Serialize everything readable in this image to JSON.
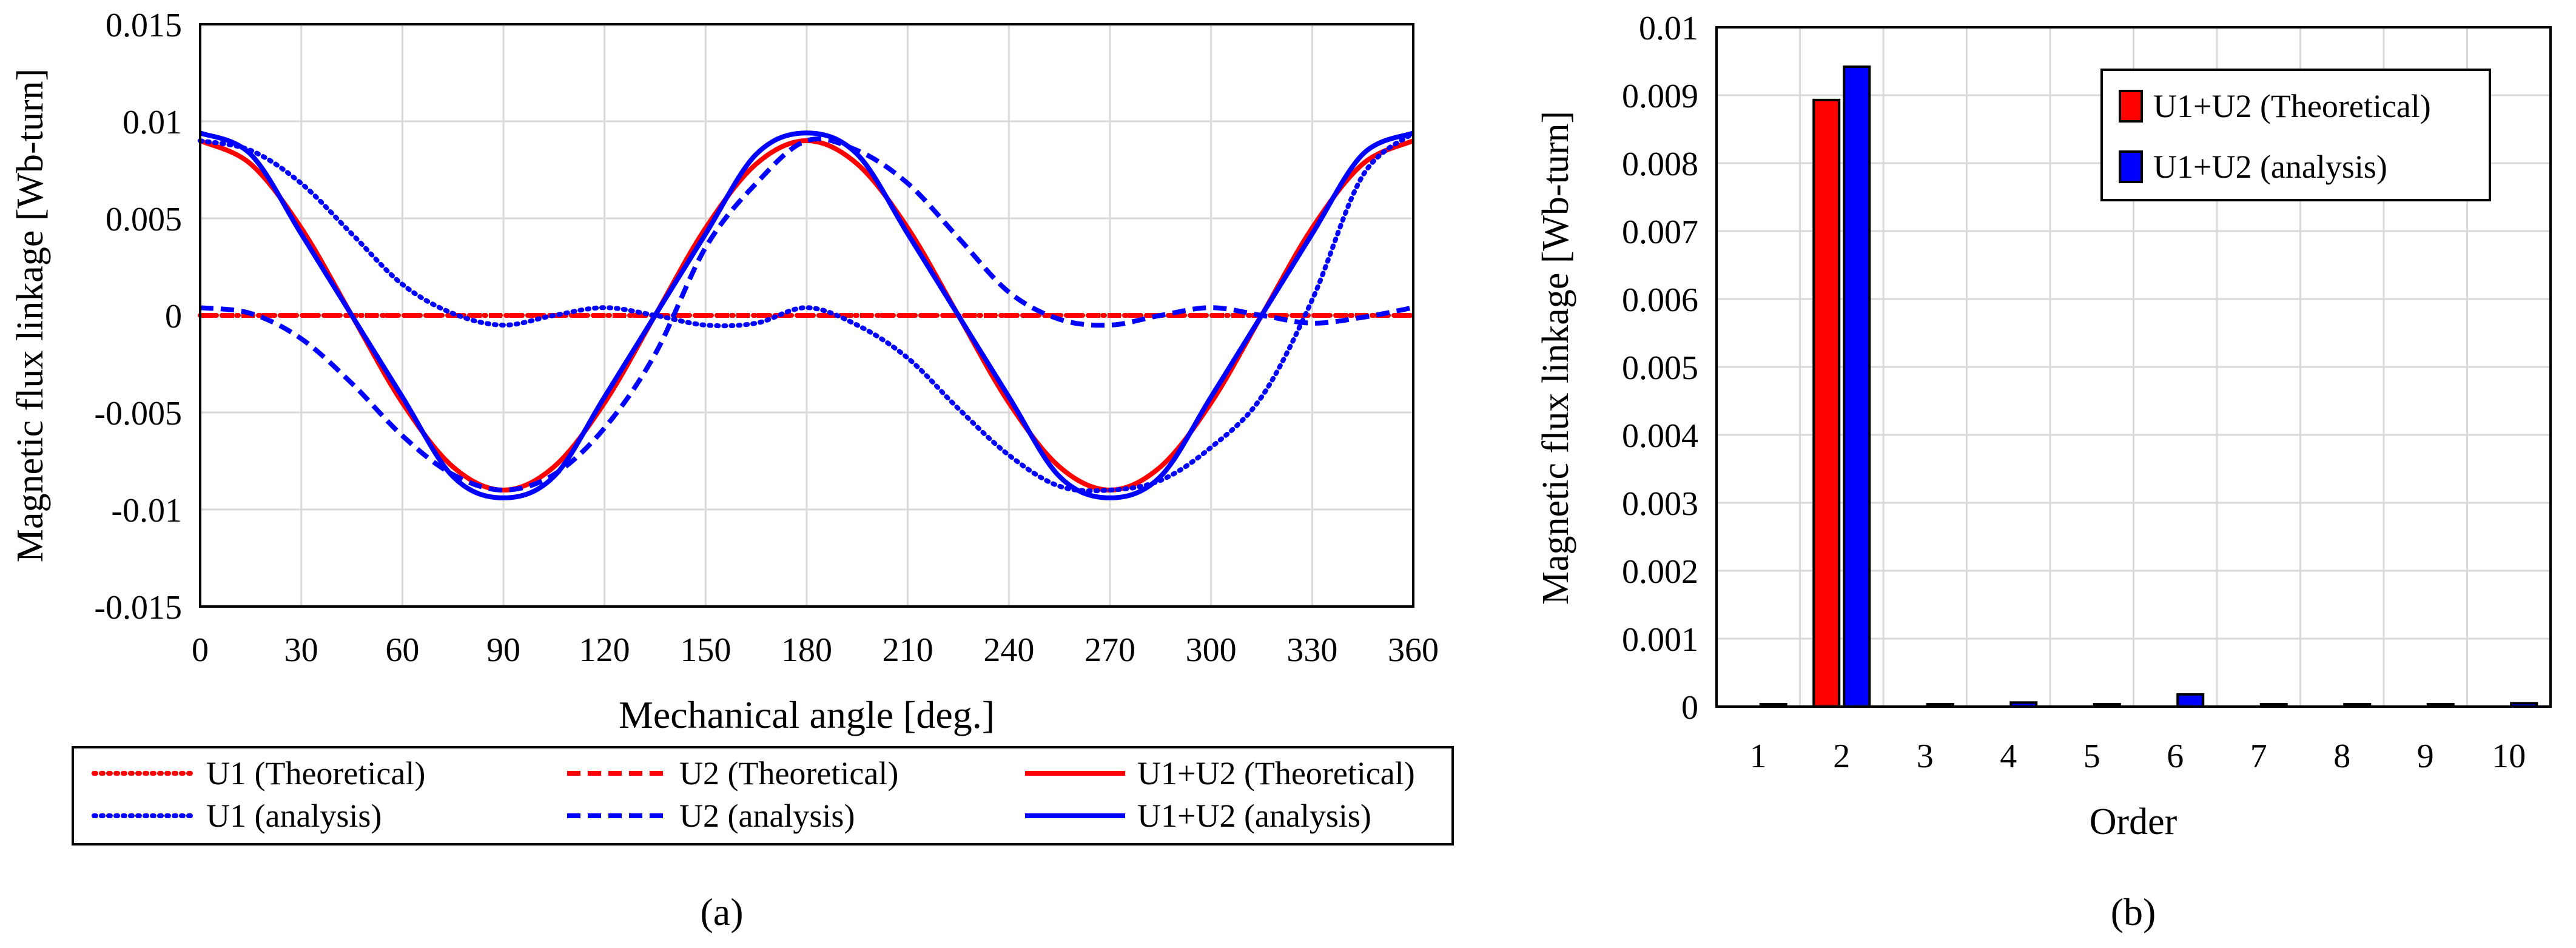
{
  "figure": {
    "panel_a_label": "(a)",
    "panel_b_label": "(b)"
  },
  "colors": {
    "theoretical": "#ff0000",
    "analysis": "#0000ff",
    "grid": "#d9d9d9",
    "axis": "#000000"
  },
  "chart_data": [
    {
      "type": "line",
      "title": "",
      "xlabel": "Mechanical angle [deg.]",
      "ylabel": "Magnetic flux linkage [Wb-turn]",
      "xlim": [
        0,
        360
      ],
      "ylim": [
        -0.015,
        0.015
      ],
      "grid": true,
      "x_ticks": [
        0,
        30,
        60,
        90,
        120,
        150,
        180,
        210,
        240,
        270,
        300,
        330,
        360
      ],
      "x_tick_labels": [
        "0",
        "30",
        "60",
        "90",
        "120",
        "150",
        "180",
        "210",
        "240",
        "270",
        "300",
        "330",
        "360"
      ],
      "y_ticks": [
        0.015,
        0.01,
        0.005,
        0,
        -0.005,
        -0.01,
        -0.015
      ],
      "y_tick_labels": [
        "0.015",
        "0.01",
        "0.005",
        "0",
        "-0.005",
        "-0.01",
        "-0.015"
      ],
      "legend_position": "bottom",
      "x": [
        0,
        15,
        30,
        45,
        60,
        75,
        90,
        105,
        120,
        135,
        150,
        165,
        180,
        195,
        210,
        225,
        240,
        255,
        270,
        285,
        300,
        315,
        330,
        345,
        360
      ],
      "series": [
        {
          "name": "U1 (Theoretical)",
          "style": "dotted",
          "color": "#ff0000",
          "values": [
            0,
            0,
            0,
            0,
            0,
            0,
            0,
            0,
            0,
            0,
            0,
            0,
            0,
            0,
            0,
            0,
            0,
            0,
            0,
            0,
            0,
            0,
            0,
            0,
            0
          ]
        },
        {
          "name": "U2 (Theoretical)",
          "style": "dashed",
          "color": "#ff0000",
          "values": [
            0,
            0,
            0,
            0,
            0,
            0,
            0,
            0,
            0,
            0,
            0,
            0,
            0,
            0,
            0,
            0,
            0,
            0,
            0,
            0,
            0,
            0,
            0,
            0,
            0
          ]
        },
        {
          "name": "U1+U2 (Theoretical)",
          "style": "solid",
          "color": "#ff0000",
          "values": [
            0.009,
            0.0078,
            0.0045,
            0,
            -0.0045,
            -0.0078,
            -0.009,
            -0.0078,
            -0.0045,
            0,
            0.0045,
            0.0078,
            0.009,
            0.0078,
            0.0045,
            0,
            -0.0045,
            -0.0078,
            -0.009,
            -0.0078,
            -0.0045,
            0,
            0.0045,
            0.0078,
            0.009
          ]
        },
        {
          "name": "U1 (analysis)",
          "style": "dotted",
          "color": "#0000ff",
          "values": [
            0.009,
            0.0085,
            0.0068,
            0.0042,
            0.0016,
            0.0001,
            -0.0005,
            0.0,
            0.0004,
            0.0,
            -0.0005,
            -0.0004,
            0.0004,
            -0.0005,
            -0.0022,
            -0.0048,
            -0.0072,
            -0.0088,
            -0.009,
            -0.0085,
            -0.0068,
            -0.0042,
            0.0008,
            0.0072,
            0.0094
          ]
        },
        {
          "name": "U2 (analysis)",
          "style": "dashed",
          "color": "#0000ff",
          "values": [
            0.0004,
            0.0001,
            -0.0012,
            -0.0035,
            -0.0062,
            -0.0082,
            -0.009,
            -0.0082,
            -0.0058,
            -0.002,
            0.0035,
            0.0068,
            0.009,
            0.0085,
            0.0068,
            0.004,
            0.0012,
            -0.0002,
            -0.0005,
            0.0,
            0.0004,
            0.0,
            -0.0004,
            -0.0001,
            0.0004
          ]
        },
        {
          "name": "U1+U2 (analysis)",
          "style": "solid",
          "color": "#0000ff",
          "values": [
            0.0094,
            0.0083,
            0.0042,
            0,
            -0.0042,
            -0.0083,
            -0.0094,
            -0.0083,
            -0.0042,
            0,
            0.0042,
            0.0083,
            0.0094,
            0.0083,
            0.0042,
            0,
            -0.0042,
            -0.0083,
            -0.0094,
            -0.0083,
            -0.0042,
            0,
            0.0042,
            0.0083,
            0.0094
          ]
        }
      ]
    },
    {
      "type": "bar",
      "title": "",
      "xlabel": "Order",
      "ylabel": "Magnetic flux linkage [Wb-turn]",
      "ylim": [
        0,
        0.01
      ],
      "grid": true,
      "categories": [
        "1",
        "2",
        "3",
        "4",
        "5",
        "6",
        "7",
        "8",
        "9",
        "10"
      ],
      "y_ticks": [
        0.01,
        0.009,
        0.008,
        0.007,
        0.006,
        0.005,
        0.004,
        0.003,
        0.002,
        0.001,
        0
      ],
      "y_tick_labels": [
        "0.01",
        "0.009",
        "0.008",
        "0.007",
        "0.006",
        "0.005",
        "0.004",
        "0.003",
        "0.002",
        "0.001",
        "0"
      ],
      "legend_position": "top-right",
      "series": [
        {
          "name": "U1+U2 (Theoretical)",
          "color": "#ff0000",
          "values": [
            0,
            0.00893,
            0,
            0,
            0,
            0,
            0,
            0,
            0,
            0
          ]
        },
        {
          "name": "U1+U2 (analysis)",
          "color": "#0000ff",
          "values": [
            2e-05,
            0.00942,
            2e-05,
            6e-05,
            1e-05,
            0.00018,
            2e-05,
            2e-05,
            2e-05,
            5e-05
          ]
        }
      ]
    }
  ]
}
